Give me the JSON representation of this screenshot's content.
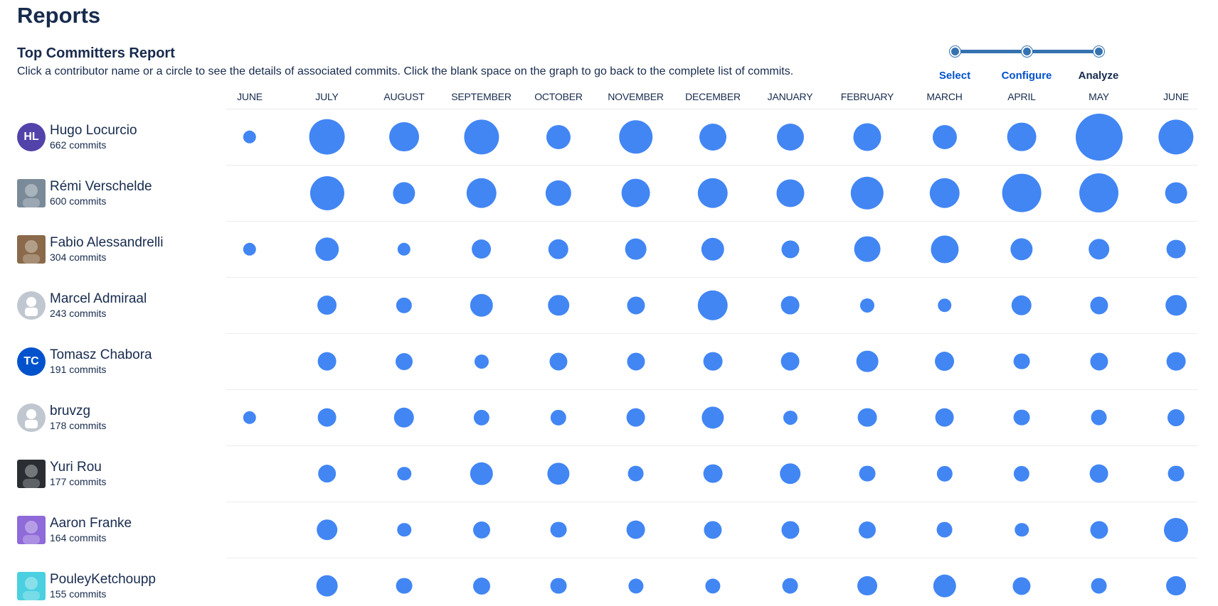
{
  "page": {
    "title": "Reports"
  },
  "report": {
    "title": "Top Committers Report",
    "description": "Click a contributor name or a circle to see the details of associated commits. Click the blank space on the graph to go back to the complete list of commits."
  },
  "wizard": {
    "steps": [
      {
        "label": "Select",
        "state": "link"
      },
      {
        "label": "Configure",
        "state": "link"
      },
      {
        "label": "Analyze",
        "state": "current"
      }
    ],
    "color": "#3572b0"
  },
  "colors": {
    "bubble": "#4286f4",
    "text": "#172b4d",
    "link": "#0052cc"
  },
  "chart_data": {
    "type": "scatter",
    "months": [
      "JUNE",
      "JULY",
      "AUGUST",
      "SEPTEMBER",
      "OCTOBER",
      "NOVEMBER",
      "DECEMBER",
      "JANUARY",
      "FEBRUARY",
      "MARCH",
      "APRIL",
      "MAY",
      "JUNE"
    ],
    "bubble_size_scale": "relative commit count per month (0 = none, 1 = largest)",
    "contributors": [
      {
        "name": "Hugo Locurcio",
        "commits": "662 commits",
        "avatar": {
          "type": "initials",
          "text": "HL",
          "color": "#5243aa"
        },
        "sizes": [
          0.15,
          0.73,
          0.57,
          0.7,
          0.43,
          0.67,
          0.5,
          0.5,
          0.52,
          0.43,
          0.55,
          1.0,
          0.7
        ]
      },
      {
        "name": "Rémi Verschelde",
        "commits": "600 commits",
        "avatar": {
          "type": "photo",
          "icon": "avatar-photo-icon",
          "color": "#7a8a99"
        },
        "sizes": [
          0,
          0.68,
          0.38,
          0.58,
          0.47,
          0.55,
          0.58,
          0.52,
          0.65,
          0.58,
          0.8,
          0.82,
          0.37
        ]
      },
      {
        "name": "Fabio Alessandrelli",
        "commits": "304 commits",
        "avatar": {
          "type": "photo",
          "icon": "avatar-photo-icon",
          "color": "#8a6a4a"
        },
        "sizes": [
          0.15,
          0.42,
          0.15,
          0.32,
          0.33,
          0.37,
          0.4,
          0.27,
          0.48,
          0.52,
          0.38,
          0.35,
          0.3
        ]
      },
      {
        "name": "Marcel Admiraal",
        "commits": "243 commits",
        "avatar": {
          "type": "default",
          "icon": "default-user-icon",
          "color": "#c1c7d0"
        },
        "sizes": [
          0,
          0.32,
          0.22,
          0.4,
          0.35,
          0.27,
          0.58,
          0.3,
          0.18,
          0.17,
          0.33,
          0.27,
          0.35
        ]
      },
      {
        "name": "Tomasz Chabora",
        "commits": "191 commits",
        "avatar": {
          "type": "initials",
          "text": "TC",
          "color": "#0052cc"
        },
        "sizes": [
          0,
          0.3,
          0.25,
          0.18,
          0.27,
          0.27,
          0.3,
          0.3,
          0.37,
          0.32,
          0.23,
          0.27,
          0.3
        ]
      },
      {
        "name": "bruvzg",
        "commits": "178 commits",
        "avatar": {
          "type": "default",
          "icon": "default-user-icon",
          "color": "#c1c7d0"
        },
        "sizes": [
          0.15,
          0.3,
          0.33,
          0.22,
          0.22,
          0.3,
          0.38,
          0.18,
          0.3,
          0.3,
          0.23,
          0.23,
          0.25
        ]
      },
      {
        "name": "Yuri Rou",
        "commits": "177 commits",
        "avatar": {
          "type": "photo",
          "icon": "avatar-photo-icon",
          "color": "#2a2e33"
        },
        "sizes": [
          0,
          0.28,
          0.17,
          0.4,
          0.38,
          0.23,
          0.3,
          0.35,
          0.23,
          0.22,
          0.22,
          0.3,
          0.23
        ]
      },
      {
        "name": "Aaron Franke",
        "commits": "164 commits",
        "avatar": {
          "type": "photo",
          "icon": "avatar-photo-icon",
          "color": "#8f6ad9"
        },
        "sizes": [
          0,
          0.35,
          0.17,
          0.25,
          0.23,
          0.3,
          0.27,
          0.27,
          0.25,
          0.23,
          0.17,
          0.27,
          0.43
        ]
      },
      {
        "name": "PouleyKetchoupp",
        "commits": "155 commits",
        "avatar": {
          "type": "photo",
          "icon": "avatar-photo-icon",
          "color": "#4ad0e0"
        },
        "sizes": [
          0,
          0.37,
          0.23,
          0.25,
          0.23,
          0.2,
          0.2,
          0.23,
          0.32,
          0.4,
          0.27,
          0.23,
          0.32
        ]
      }
    ]
  }
}
